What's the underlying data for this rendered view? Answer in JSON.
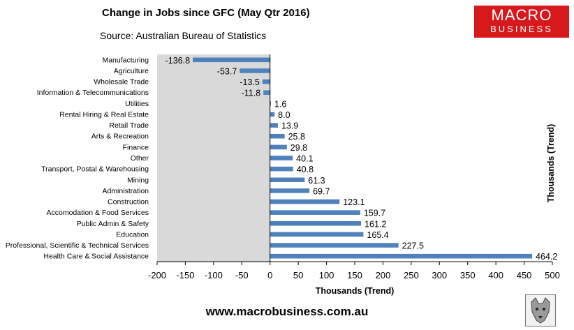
{
  "chart_data": {
    "type": "bar",
    "orientation": "horizontal",
    "title": "Change in Jobs since GFC (May Qtr 2016)",
    "subtitle": "Source: Australian Bureau of Statistics",
    "xlabel": "Thousands (Trend)",
    "y2label": "Thousands (Trend)",
    "xlim": [
      -200,
      500
    ],
    "xticks": [
      -200,
      -150,
      -100,
      -50,
      0,
      50,
      100,
      150,
      200,
      250,
      300,
      350,
      400,
      450,
      500
    ],
    "grid": false,
    "bar_color": "#4f81bd",
    "categories": [
      "Manufacturing",
      "Agriculture",
      "Wholesale Trade",
      "Information & Telecommunications",
      "Utilities",
      "Rental Hiring & Real Estate",
      "Retail Trade",
      "Arts & Recreation",
      "Finance",
      "Other",
      "Transport, Postal & Warehousing",
      "Mining",
      "Administration",
      "Construction",
      "Accomodation & Food Services",
      "Public Admin & Safety",
      "Education",
      "Professional, Scientific & Technical Services",
      "Health Care & Social Assistance"
    ],
    "values": [
      -136.8,
      -53.7,
      -13.5,
      -11.8,
      1.6,
      8.0,
      13.9,
      25.8,
      29.8,
      40.1,
      40.8,
      61.3,
      69.7,
      123.1,
      159.7,
      161.2,
      165.4,
      227.5,
      464.2
    ],
    "value_labels": [
      "-136.8",
      "-53.7",
      "-13.5",
      "-11.8",
      "1.6",
      "8.0",
      "13.9",
      "25.8",
      "29.8",
      "40.1",
      "40.8",
      "61.3",
      "69.7",
      "123.1",
      "159.7",
      "161.2",
      "165.4",
      "227.5",
      "464.2"
    ]
  },
  "branding": {
    "logo_line1": "MACRO",
    "logo_line2": "BUSINESS",
    "logo_color": "#d7191c",
    "website": "www.macrobusiness.com.au",
    "badge_icon": "wolf-icon"
  }
}
